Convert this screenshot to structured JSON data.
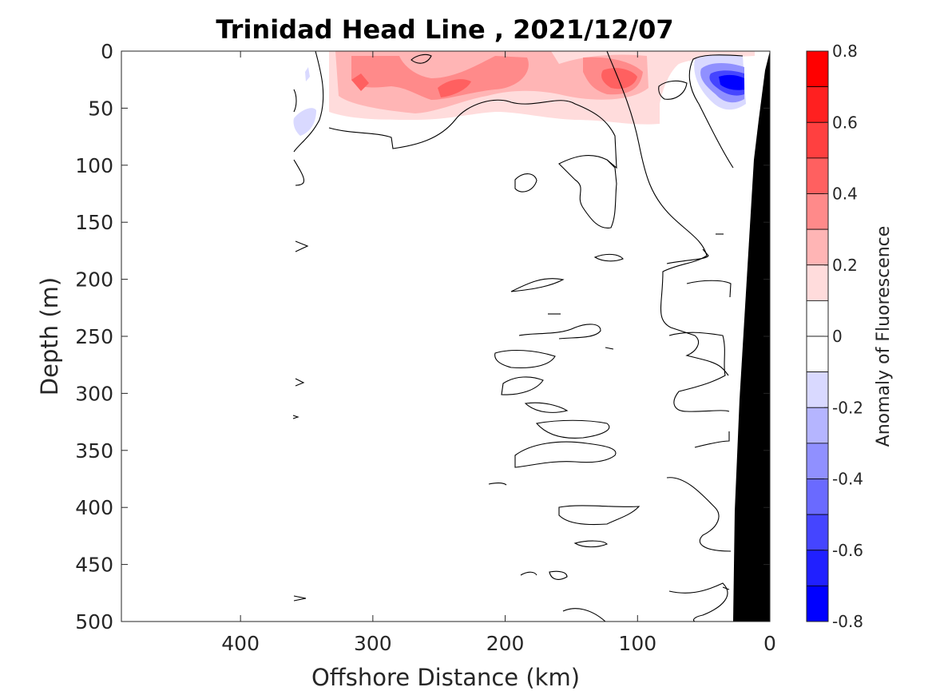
{
  "chart_data": {
    "type": "heatmap",
    "title": "Trinidad Head Line , 2021/12/07",
    "xlabel": "Offshore Distance (km)",
    "ylabel": "Depth (m)",
    "x_reversed": true,
    "y_reversed": true,
    "xlim": [
      0,
      490
    ],
    "ylim": [
      0,
      500
    ],
    "x_ticks": [
      "400",
      "300",
      "200",
      "100",
      "0"
    ],
    "x_tick_values": [
      400,
      300,
      200,
      100,
      0
    ],
    "y_ticks": [
      "0",
      "50",
      "100",
      "150",
      "200",
      "250",
      "300",
      "350",
      "400",
      "450",
      "500"
    ],
    "y_tick_values": [
      0,
      50,
      100,
      150,
      200,
      250,
      300,
      350,
      400,
      450,
      500
    ],
    "colorbar": {
      "label": "Anomaly of Fluorescence",
      "range": [
        -0.8,
        0.8
      ],
      "ticks": [
        "0.8",
        "0.6",
        "0.4",
        "0.2",
        "0",
        "-0.2",
        "-0.4",
        "-0.6",
        "-0.8"
      ],
      "tick_values": [
        0.8,
        0.6,
        0.4,
        0.2,
        0,
        -0.2,
        -0.4,
        -0.6,
        -0.8
      ],
      "levels": [
        {
          "min": 0.7,
          "max": 0.8,
          "color": "#ff0000"
        },
        {
          "min": 0.6,
          "max": 0.7,
          "color": "#ff2020"
        },
        {
          "min": 0.5,
          "max": 0.6,
          "color": "#ff4040"
        },
        {
          "min": 0.4,
          "max": 0.5,
          "color": "#ff6060"
        },
        {
          "min": 0.3,
          "max": 0.4,
          "color": "#ff8a8a"
        },
        {
          "min": 0.2,
          "max": 0.3,
          "color": "#ffb5b5"
        },
        {
          "min": 0.1,
          "max": 0.2,
          "color": "#ffdcdc"
        },
        {
          "min": 0.0,
          "max": 0.1,
          "color": "#ffffff"
        },
        {
          "min": -0.1,
          "max": 0.0,
          "color": "#ffffff"
        },
        {
          "min": -0.2,
          "max": -0.1,
          "color": "#d9d9ff"
        },
        {
          "min": -0.3,
          "max": -0.2,
          "color": "#b5b5ff"
        },
        {
          "min": -0.4,
          "max": -0.3,
          "color": "#9090ff"
        },
        {
          "min": -0.5,
          "max": -0.4,
          "color": "#6a6aff"
        },
        {
          "min": -0.6,
          "max": -0.5,
          "color": "#4545ff"
        },
        {
          "min": -0.7,
          "max": -0.6,
          "color": "#2020ff"
        },
        {
          "min": -0.8,
          "max": -0.7,
          "color": "#0000ff"
        }
      ]
    },
    "features": [
      {
        "name": "surface positive anomaly band",
        "x_range": [
          340,
          60
        ],
        "depth_range": [
          0,
          60
        ],
        "max_value": 0.5
      },
      {
        "name": "nearshore negative anomaly core",
        "x": 28,
        "depth": 28,
        "min_value": -0.8
      },
      {
        "name": "offshore weak negative patch",
        "x": 360,
        "depth": 60,
        "min_value": -0.2
      }
    ],
    "bathymetry_color": "#000000"
  }
}
